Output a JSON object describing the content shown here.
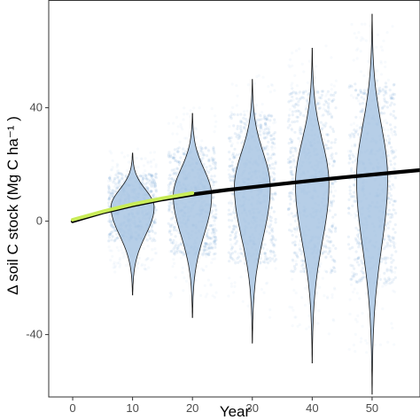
{
  "chart_data": {
    "type": "violin",
    "xlabel": "Year",
    "ylabel": "Δ soil C stock (Mg C ha⁻¹ )",
    "xlim": [
      -4,
      58
    ],
    "ylim": [
      -62,
      78
    ],
    "x_ticks": [
      "0",
      "10",
      "20",
      "30",
      "40",
      "50"
    ],
    "x_tick_values": [
      0,
      10,
      20,
      30,
      40,
      50
    ],
    "y_ticks": [
      "40",
      "0",
      "-40"
    ],
    "y_tick_values": [
      40,
      0,
      -40
    ],
    "grid": false,
    "violins": [
      {
        "year": 10,
        "min": -26,
        "max": 24,
        "center": 5,
        "max_halfwidth": 3.6
      },
      {
        "year": 20,
        "min": -34,
        "max": 38,
        "center": 9,
        "max_halfwidth": 3.2
      },
      {
        "year": 30,
        "min": -43,
        "max": 50,
        "center": 12,
        "max_halfwidth": 3.0
      },
      {
        "year": 40,
        "min": -50,
        "max": 61,
        "center": 13,
        "max_halfwidth": 2.8
      },
      {
        "year": 50,
        "min": -61,
        "max": 73,
        "center": 15,
        "max_halfwidth": 2.6
      }
    ],
    "scatter_bands": [
      {
        "year": 10,
        "dense_range": [
          -7,
          17
        ],
        "sparse_range": [
          -18,
          26
        ]
      },
      {
        "year": 20,
        "dense_range": [
          -12,
          26
        ],
        "sparse_range": [
          -27,
          40
        ]
      },
      {
        "year": 30,
        "dense_range": [
          -15,
          38
        ],
        "sparse_range": [
          -35,
          52
        ]
      },
      {
        "year": 40,
        "dense_range": [
          -18,
          46
        ],
        "sparse_range": [
          -40,
          62
        ]
      },
      {
        "year": 50,
        "dense_range": [
          -22,
          50
        ],
        "sparse_range": [
          -48,
          70
        ]
      }
    ],
    "series": [
      {
        "style": "black-line",
        "x": [
          0,
          5,
          10,
          15,
          20,
          25,
          30,
          35,
          40,
          45,
          50,
          55,
          58
        ],
        "y": [
          0,
          3.1,
          5.6,
          7.7,
          9.4,
          10.8,
          12.0,
          13.2,
          14.3,
          15.4,
          16.4,
          17.4,
          18.0
        ]
      },
      {
        "style": "green-line",
        "x": [
          0,
          5,
          10,
          15,
          20
        ],
        "y": [
          0.5,
          3.4,
          6.0,
          8.1,
          9.9
        ]
      }
    ],
    "colors": {
      "violin_fill": "#a9c6e3",
      "scatter": "#3b82c4",
      "black_line": "#000000",
      "green_line": "#c9ec58",
      "axis": "#333333"
    }
  }
}
